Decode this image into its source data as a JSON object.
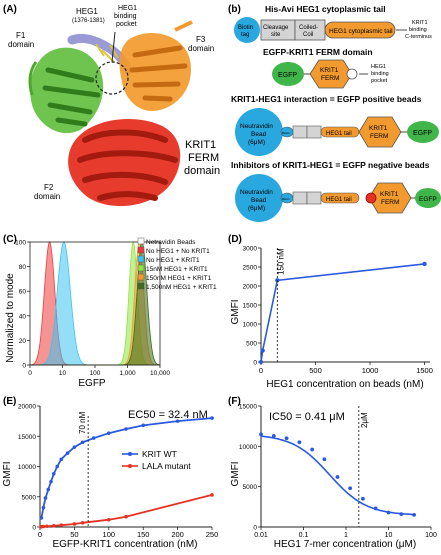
{
  "figure": {
    "panel_a": {
      "letter": "(A)",
      "heg1_label": "HEG1",
      "heg1_range": "(1376-1381)",
      "pocket_label_1": "HEG1",
      "pocket_label_2": "binding",
      "pocket_label_3": "pocket",
      "f1_1": "F1",
      "f1_2": "domain",
      "f2_1": "F2",
      "f2_2": "domain",
      "f3_1": "F3",
      "f3_2": "domain",
      "krit_1": "KRIT1",
      "krit_2": "FERM",
      "krit_3": "domain"
    },
    "panel_b": {
      "letter": "(b)",
      "title1": "His-Avi HEG1 cytoplasmic tail",
      "biotin_1": "Biotin",
      "biotin_2": "tag",
      "cleavage_1": "Cleavage",
      "cleavage_2": "site",
      "coiled_1": "Coiled-",
      "coiled_2": "Coil",
      "tail_box": "HEG1 cytoplasmic tail",
      "cterm_1": "KRIT1",
      "cterm_2": "binding",
      "cterm_3": "C-terminus",
      "title2": "EGFP-KRIT1 FERM domain",
      "egfp": "EGFP",
      "krit1": "KRIT1",
      "ferm": "FERM",
      "pocket_1": "HEG1",
      "pocket_2": "binding",
      "pocket_3": "pocket",
      "title3": "KRIT1-HEG1 interaction = EGFP positive beads",
      "bead_1": "Neutravidin",
      "bead_2": "Bead",
      "bead_3": "(6μM)",
      "biotin_small": "Biotin",
      "heg1_tail": "HEG1 tail",
      "title4": "Inhibitors of KRIT1-HEG1 = EGFP negative beads"
    },
    "panel_c": {
      "letter": "(C)",
      "ylabel": "Normalized to mode",
      "xlabel": "EGFP",
      "yticks": [
        "0",
        "20",
        "40",
        "60",
        "80",
        "100"
      ],
      "xticks": [
        "0",
        "10",
        "100",
        "1,000",
        "10,000"
      ],
      "legend": [
        {
          "label": "Netravidin Beads",
          "color": "#ffffff"
        },
        {
          "label": "No HEG1 + No KRIT1",
          "color": "#ee3b3b"
        },
        {
          "label": "No HEG1 + KRIT1",
          "color": "#3cc4f0"
        },
        {
          "label": "15nM HEG1 + KRIT1",
          "color": "#8ee63c"
        },
        {
          "label": "150nM HEG1 + KRIT1",
          "color": "#f29a2e"
        },
        {
          "label": "1,500nM HEG1 + KRIT1",
          "color": "#3d6b1f"
        }
      ]
    },
    "panel_d": {
      "letter": "(D)",
      "ylabel": "GMFI",
      "xlabel": "HEG1 concentration on beads (nM)",
      "annotation": "150 nM",
      "xticks": [
        "0",
        "500",
        "1000",
        "1500"
      ],
      "yticks": [
        "0",
        "500",
        "1000",
        "1500",
        "2000",
        "2500",
        "3000"
      ]
    },
    "panel_e": {
      "letter": "(E)",
      "ylabel": "GMFI",
      "xlabel": "EGFP-KRIT1 concentration (nM)",
      "ec50": "EC50 = 32.4 nM",
      "annotation": "70 nM",
      "legend": [
        {
          "label": "KRIT WT",
          "color": "#2b59e0"
        },
        {
          "label": "LALA mutant",
          "color": "#e63222"
        }
      ],
      "xticks": [
        "0",
        "50",
        "100",
        "150",
        "200",
        "250"
      ],
      "yticks": [
        "0",
        "5000",
        "10000",
        "15000",
        "20000"
      ]
    },
    "panel_f": {
      "letter": "(F)",
      "ylabel": "GMFI",
      "xlabel": "HEG1 7-mer concentration (μM)",
      "ic50": "IC50 = 0.41 μM",
      "annotation": "2μM",
      "xticks": [
        "0.01",
        "0.1",
        "1",
        "10",
        "100"
      ],
      "yticks": [
        "0",
        "5000",
        "10000",
        "15000"
      ]
    }
  },
  "chart_data": [
    {
      "type": "line",
      "id": "C",
      "xscale": "log",
      "xlim": [
        1,
        10000
      ],
      "ylim": [
        0,
        100
      ],
      "series": [
        {
          "name": "No HEG1 + No KRIT1",
          "center": 4,
          "width_log": 0.16
        },
        {
          "name": "No HEG1 + KRIT1",
          "center": 11,
          "width_log": 0.2
        },
        {
          "name": "15nM HEG1 + KRIT1",
          "center": 1500,
          "width_log": 0.13
        },
        {
          "name": "150nM HEG1 + KRIT1",
          "center": 2300,
          "width_log": 0.14
        },
        {
          "name": "1,500nM HEG1 + KRIT1",
          "center": 2800,
          "width_log": 0.15
        }
      ]
    },
    {
      "type": "line",
      "id": "D",
      "xlim": [
        0,
        1550
      ],
      "ylim": [
        0,
        3000
      ],
      "x": [
        0,
        15,
        150,
        1500
      ],
      "y": [
        0,
        300,
        2150,
        2580
      ]
    },
    {
      "type": "scatter",
      "id": "E",
      "xlim": [
        0,
        250
      ],
      "ylim": [
        0,
        20000
      ],
      "series": [
        {
          "name": "KRIT WT",
          "x": [
            2,
            5,
            8,
            12,
            16,
            20,
            25,
            31,
            40,
            50,
            62,
            78,
            100,
            125,
            150,
            200,
            250
          ],
          "y": [
            1500,
            3200,
            4800,
            6200,
            7500,
            8800,
            10000,
            11200,
            12200,
            13200,
            14000,
            14700,
            15500,
            16200,
            16800,
            17500,
            18000
          ]
        },
        {
          "name": "LALA mutant",
          "x": [
            2,
            5,
            10,
            20,
            31,
            50,
            62,
            100,
            125,
            250
          ],
          "y": [
            50,
            80,
            120,
            200,
            300,
            500,
            700,
            1200,
            1700,
            5300
          ]
        }
      ]
    },
    {
      "type": "scatter",
      "id": "F",
      "xscale": "log",
      "xlim": [
        0.01,
        100
      ],
      "ylim": [
        0,
        15000
      ],
      "x": [
        0.01,
        0.02,
        0.04,
        0.08,
        0.16,
        0.31,
        0.63,
        1.25,
        2.5,
        5,
        10,
        20,
        40
      ],
      "y": [
        11500,
        11300,
        11000,
        10500,
        9600,
        8400,
        6200,
        4800,
        3500,
        2300,
        1800,
        1600,
        1500
      ]
    }
  ]
}
